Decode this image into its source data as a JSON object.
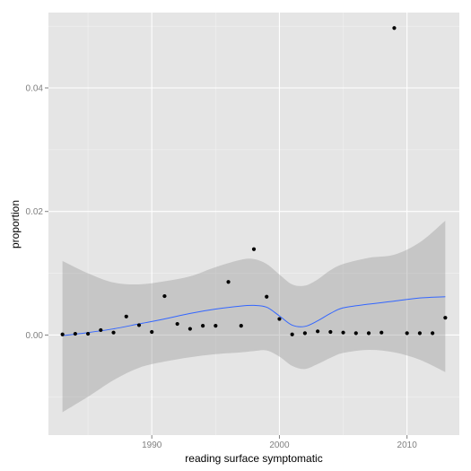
{
  "chart_data": {
    "type": "scatter",
    "xlabel": "reading surface symptomatic",
    "ylabel": "proportion",
    "xlim": [
      1981.9,
      2014.1
    ],
    "ylim": [
      -0.0162,
      0.0522
    ],
    "x_ticks": [
      1990,
      2000,
      2010
    ],
    "x_tick_labels": [
      "1990",
      "2000",
      "2010"
    ],
    "y_ticks": [
      0.0,
      0.02,
      0.04
    ],
    "y_tick_labels": [
      "0.00",
      "0.02",
      "0.04"
    ],
    "grid": true,
    "legend": "none",
    "colors": {
      "panel": "#e5e5e5",
      "grid_major": "#ffffff",
      "grid_minor": "#f2f2f2",
      "points": "#000000",
      "smooth_line": "#3366ff",
      "ribbon": "#999999"
    },
    "points": {
      "x": [
        1983,
        1984,
        1985,
        1986,
        1987,
        1988,
        1989,
        1990,
        1991,
        1992,
        1993,
        1994,
        1995,
        1996,
        1997,
        1998,
        1999,
        2000,
        2001,
        2002,
        2003,
        2004,
        2005,
        2006,
        2007,
        2008,
        2009,
        2010,
        2011,
        2012,
        2013
      ],
      "y": [
        0.0001,
        0.0002,
        0.0002,
        0.0008,
        0.0004,
        0.003,
        0.0016,
        0.0005,
        0.0063,
        0.0018,
        0.001,
        0.0015,
        0.0015,
        0.0086,
        0.0015,
        0.0139,
        0.0062,
        0.0026,
        0.0001,
        0.0003,
        0.0006,
        0.0005,
        0.0004,
        0.0003,
        0.0003,
        0.0004,
        0.0497,
        0.0003,
        0.0003,
        0.0003,
        0.0028
      ]
    },
    "smooth": {
      "x": [
        1983,
        1985,
        1987,
        1989,
        1991,
        1993,
        1995,
        1997,
        1998,
        1999,
        2000,
        2001,
        2002,
        2003,
        2004,
        2005,
        2007,
        2009,
        2011,
        2013
      ],
      "y": [
        -0.0001,
        0.0004,
        0.001,
        0.0018,
        0.0026,
        0.0035,
        0.0042,
        0.0047,
        0.0048,
        0.0045,
        0.0031,
        0.0016,
        0.0014,
        0.0023,
        0.0035,
        0.0044,
        0.005,
        0.0055,
        0.006,
        0.0062
      ],
      "lower": [
        -0.0125,
        -0.01,
        -0.0073,
        -0.0053,
        -0.0043,
        -0.0036,
        -0.0031,
        -0.0028,
        -0.0026,
        -0.0025,
        -0.0035,
        -0.005,
        -0.0055,
        -0.0047,
        -0.0037,
        -0.0029,
        -0.0024,
        -0.0028,
        -0.004,
        -0.006
      ],
      "upper": [
        0.012,
        0.01,
        0.0085,
        0.0082,
        0.0087,
        0.0095,
        0.011,
        0.0122,
        0.0123,
        0.0115,
        0.0098,
        0.0082,
        0.008,
        0.009,
        0.0105,
        0.0115,
        0.0125,
        0.013,
        0.015,
        0.0185
      ]
    }
  }
}
